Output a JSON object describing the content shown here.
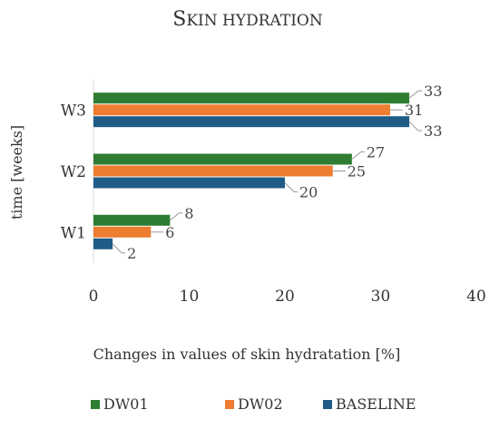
{
  "chart_data": {
    "type": "bar",
    "orientation": "horizontal",
    "title": "Skin hydration",
    "xlabel": "Changes in values of skin hydratation [%]",
    "ylabel": "time [weeks]",
    "xlim": [
      0,
      40
    ],
    "xticks": [
      0,
      10,
      20,
      30,
      40
    ],
    "categories": [
      "W1",
      "W2",
      "W3"
    ],
    "series": [
      {
        "name": "DW01",
        "values": [
          8,
          27,
          33
        ],
        "color": "#2e7d32"
      },
      {
        "name": "DW02",
        "values": [
          6,
          25,
          31
        ],
        "color": "#ed7d31"
      },
      {
        "name": "BASELINE",
        "values": [
          2,
          20,
          33
        ],
        "color": "#1f5c87"
      }
    ],
    "grid": false,
    "legend": "bottom"
  }
}
